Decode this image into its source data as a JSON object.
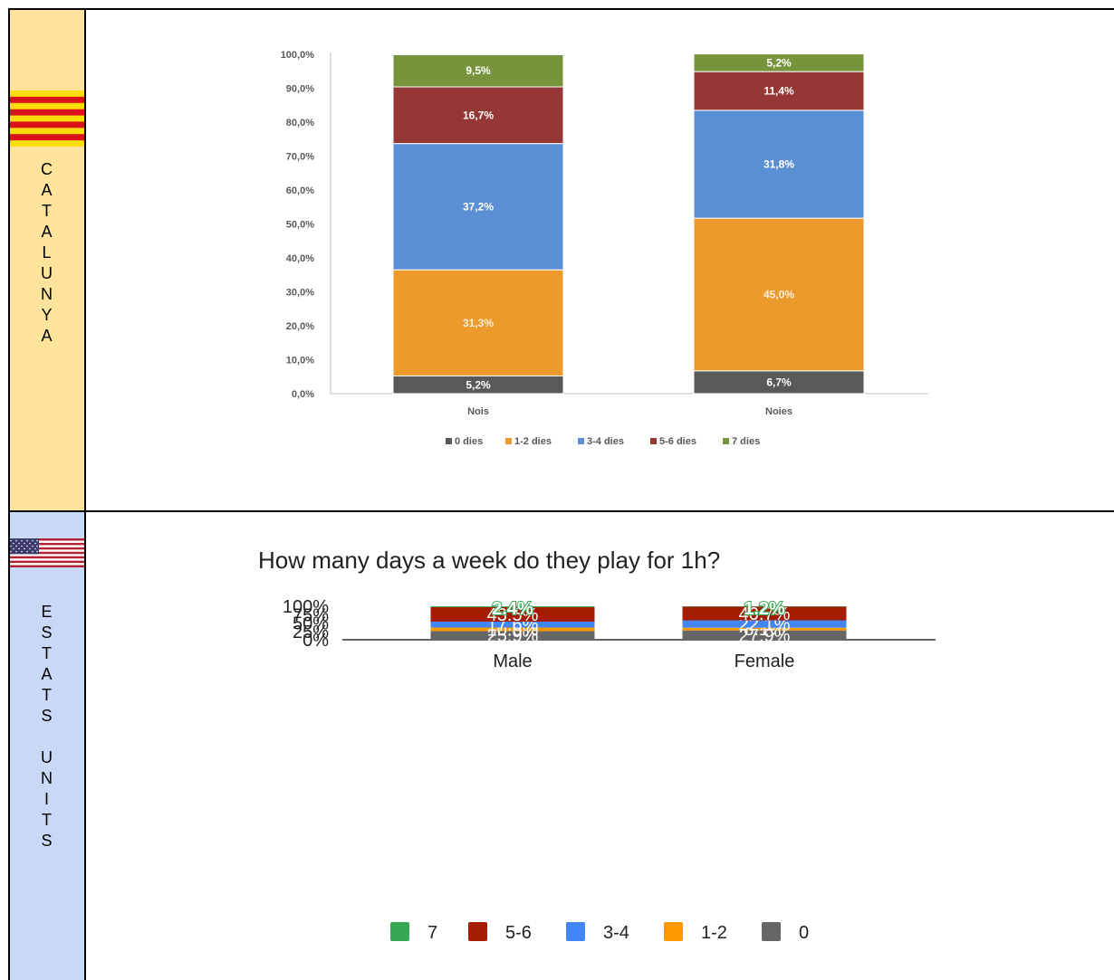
{
  "rows": [
    {
      "side_label": "CATALUNYA",
      "flag": "catalonia-flag-icon",
      "bg": "#fde39b"
    },
    {
      "side_label": "ESTATS UNITS",
      "flag": "usa-flag-icon",
      "bg": "#c9d9f5"
    }
  ],
  "chart_data": [
    {
      "type": "bar",
      "stacked": true,
      "categories": [
        "Nois",
        "Noies"
      ],
      "series": [
        {
          "name": "0 dies",
          "color": "#595959",
          "values": [
            5.2,
            6.7
          ],
          "labels": [
            "5,2%",
            "6,7%"
          ]
        },
        {
          "name": "1-2 dies",
          "color": "#ed9a2d",
          "values": [
            31.3,
            45.0
          ],
          "labels": [
            "31,3%",
            "45,0%"
          ]
        },
        {
          "name": "3-4 dies",
          "color": "#5b8fd4",
          "values": [
            37.2,
            31.8
          ],
          "labels": [
            "37,2%",
            "31,8%"
          ]
        },
        {
          "name": "5-6 dies",
          "color": "#953735",
          "values": [
            16.7,
            11.4
          ],
          "labels": [
            "16,7%",
            "11,4%"
          ]
        },
        {
          "name": "7 dies",
          "color": "#77933c",
          "values": [
            9.5,
            5.2
          ],
          "labels": [
            "9,5%",
            "5,2%"
          ]
        }
      ],
      "yticks": [
        "0,0%",
        "10,0%",
        "20,0%",
        "30,0%",
        "40,0%",
        "50,0%",
        "60,0%",
        "70,0%",
        "80,0%",
        "90,0%",
        "100,0%"
      ],
      "ylim": [
        0,
        100
      ],
      "legend": "bottom",
      "grid": false
    },
    {
      "type": "bar",
      "stacked": true,
      "title": "How many days a week do they play for 1h?",
      "categories": [
        "Male",
        "Female"
      ],
      "series": [
        {
          "name": "0",
          "color": "#666666",
          "values": [
            25.9,
            27.9
          ],
          "labels": [
            "25.9%",
            "27.9%"
          ]
        },
        {
          "name": "1-2",
          "color": "#ff9900",
          "values": [
            10.6,
            8.1
          ],
          "labels": [
            "10.6%",
            "8.1%"
          ]
        },
        {
          "name": "3-4",
          "color": "#4285f4",
          "values": [
            17.6,
            22.1
          ],
          "labels": [
            "17.6%",
            "22.1%"
          ]
        },
        {
          "name": "5-6",
          "color": "#a61c00",
          "values": [
            43.5,
            40.7
          ],
          "labels": [
            "43.5%",
            "40.7%"
          ]
        },
        {
          "name": "7",
          "color": "#34a853",
          "values": [
            2.4,
            1.2
          ],
          "labels": [
            "2.4%",
            "1.2%"
          ]
        }
      ],
      "yticks": [
        "0%",
        "25%",
        "50%",
        "75%",
        "100%"
      ],
      "ylim": [
        0,
        100
      ],
      "legend": "bottom",
      "legend_order": [
        "7",
        "5-6",
        "3-4",
        "1-2",
        "0"
      ],
      "grid": false
    }
  ]
}
